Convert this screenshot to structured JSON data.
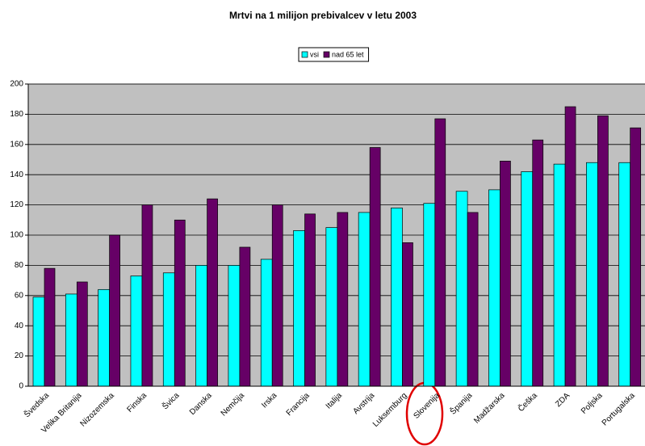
{
  "chart_data": {
    "type": "bar",
    "title": "Mrtvi na 1 milijon prebivalcev v letu 2003",
    "categories": [
      "Švedska",
      "Velika Britanija",
      "Nizozemska",
      "Finska",
      "Švica",
      "Danska",
      "Nemčija",
      "Irska",
      "Francija",
      "Italija",
      "Avstrija",
      "Luksemburg",
      "Slovenija",
      "Španija",
      "Madžarska",
      "Češka",
      "ZDA",
      "Poljska",
      "Portugalska"
    ],
    "series": [
      {
        "name": "vsi",
        "color": "#00ffff",
        "values": [
          59,
          61,
          64,
          73,
          75,
          80,
          80,
          84,
          103,
          105,
          115,
          118,
          121,
          129,
          130,
          142,
          147,
          148,
          148
        ]
      },
      {
        "name": "nad 65 let",
        "color": "#660066",
        "values": [
          78,
          69,
          100,
          120,
          110,
          124,
          92,
          120,
          114,
          115,
          158,
          95,
          177,
          115,
          149,
          163,
          185,
          179,
          171
        ]
      }
    ],
    "ylim": [
      0,
      200
    ],
    "yticks": [
      0,
      20,
      40,
      60,
      80,
      100,
      120,
      140,
      160,
      180,
      200
    ],
    "grid": true,
    "legend": "top"
  }
}
